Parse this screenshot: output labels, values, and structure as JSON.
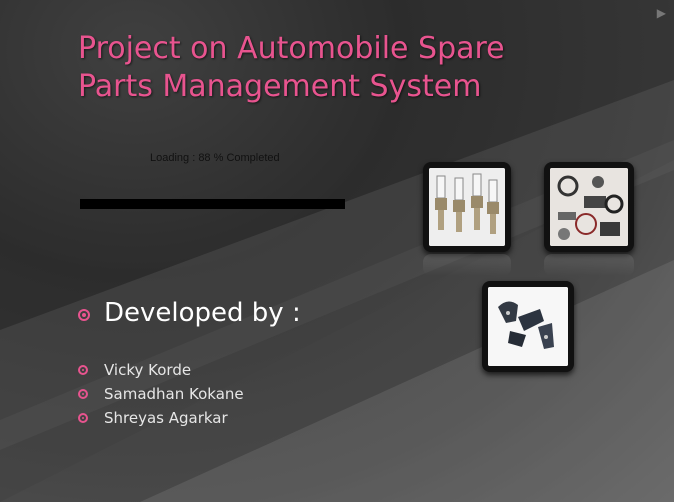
{
  "slide": {
    "title_line1": "Project on Automobile Spare",
    "title_line2": "Parts Management System",
    "loading_text": "Loading : 88 % Completed",
    "progress_percent": 88,
    "developed_heading": "Developed by :",
    "developers": [
      "Vicky Korde",
      "Samadhan Kokane",
      "Shreyas Agarkar"
    ],
    "accent_color": "#e8548f",
    "images": [
      {
        "name": "spark-plugs-image"
      },
      {
        "name": "engine-parts-image"
      },
      {
        "name": "brackets-image"
      }
    ]
  }
}
